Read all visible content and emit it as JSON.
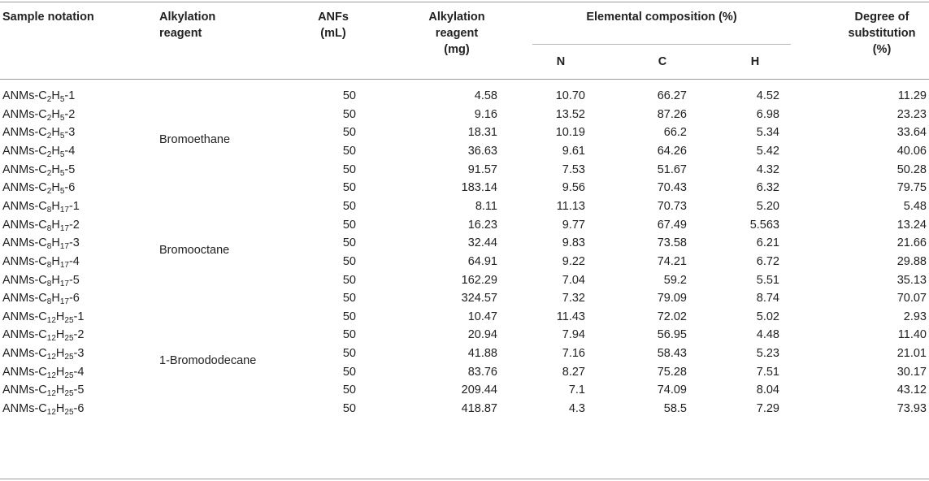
{
  "headers": {
    "sample_notation": "Sample notation",
    "alkylation_reagent_1": "Alkylation",
    "alkylation_reagent_2": "reagent",
    "anfs_1": "ANFs",
    "anfs_2": "(mL)",
    "alk_mg_1": "Alkylation",
    "alk_mg_2": "reagent",
    "alk_mg_3": "(mg)",
    "elemental": "Elemental composition (%)",
    "n": "N",
    "c": "C",
    "h": "H",
    "dos_1": "Degree of",
    "dos_2": "substitution",
    "dos_3": "(%)"
  },
  "groups": [
    {
      "reagent": "Bromoethane"
    },
    {
      "reagent": "Bromooctane"
    },
    {
      "reagent": "1-Bromododecane"
    }
  ],
  "rows": [
    {
      "prefix": "ANMs-C",
      "s1": "2",
      "mid": "H",
      "s2": "5",
      "suffix": "-1",
      "anfs": "50",
      "mg": "4.58",
      "n": "10.70",
      "c": "66.27",
      "h": "4.52",
      "dos": "11.29"
    },
    {
      "prefix": "ANMs-C",
      "s1": "2",
      "mid": "H",
      "s2": "5",
      "suffix": "-2",
      "anfs": "50",
      "mg": "9.16",
      "n": "13.52",
      "c": "87.26",
      "h": "6.98",
      "dos": "23.23"
    },
    {
      "prefix": "ANMs-C",
      "s1": "2",
      "mid": "H",
      "s2": "5",
      "suffix": "-3",
      "anfs": "50",
      "mg": "18.31",
      "n": "10.19",
      "c": "66.2",
      "h": "5.34",
      "dos": "33.64"
    },
    {
      "prefix": "ANMs-C",
      "s1": "2",
      "mid": "H",
      "s2": "5",
      "suffix": "-4",
      "anfs": "50",
      "mg": "36.63",
      "n": "9.61",
      "c": "64.26",
      "h": "5.42",
      "dos": "40.06"
    },
    {
      "prefix": "ANMs-C",
      "s1": "2",
      "mid": "H",
      "s2": "5",
      "suffix": "-5",
      "anfs": "50",
      "mg": "91.57",
      "n": "7.53",
      "c": "51.67",
      "h": "4.32",
      "dos": "50.28"
    },
    {
      "prefix": "ANMs-C",
      "s1": "2",
      "mid": "H",
      "s2": "5",
      "suffix": "-6",
      "anfs": "50",
      "mg": "183.14",
      "n": "9.56",
      "c": "70.43",
      "h": "6.32",
      "dos": "79.75"
    },
    {
      "prefix": "ANMs-C",
      "s1": "8",
      "mid": "H",
      "s2": "17",
      "suffix": "-1",
      "anfs": "50",
      "mg": "8.11",
      "n": "11.13",
      "c": "70.73",
      "h": "5.20",
      "dos": "5.48"
    },
    {
      "prefix": "ANMs-C",
      "s1": "8",
      "mid": "H",
      "s2": "17",
      "suffix": "-2",
      "anfs": "50",
      "mg": "16.23",
      "n": "9.77",
      "c": "67.49",
      "h": "5.563",
      "dos": "13.24"
    },
    {
      "prefix": "ANMs-C",
      "s1": "8",
      "mid": "H",
      "s2": "17",
      "suffix": "-3",
      "anfs": "50",
      "mg": "32.44",
      "n": "9.83",
      "c": "73.58",
      "h": "6.21",
      "dos": "21.66"
    },
    {
      "prefix": "ANMs-C",
      "s1": "8",
      "mid": "H",
      "s2": "17",
      "suffix": "-4",
      "anfs": "50",
      "mg": "64.91",
      "n": "9.22",
      "c": "74.21",
      "h": "6.72",
      "dos": "29.88"
    },
    {
      "prefix": "ANMs-C",
      "s1": "8",
      "mid": "H",
      "s2": "17",
      "suffix": "-5",
      "anfs": "50",
      "mg": "162.29",
      "n": "7.04",
      "c": "59.2",
      "h": "5.51",
      "dos": "35.13"
    },
    {
      "prefix": "ANMs-C",
      "s1": "8",
      "mid": "H",
      "s2": "17",
      "suffix": "-6",
      "anfs": "50",
      "mg": "324.57",
      "n": "7.32",
      "c": "79.09",
      "h": "8.74",
      "dos": "70.07"
    },
    {
      "prefix": "ANMs-C",
      "s1": "12",
      "mid": "H",
      "s2": "25",
      "suffix": "-1",
      "anfs": "50",
      "mg": "10.47",
      "n": "11.43",
      "c": "72.02",
      "h": "5.02",
      "dos": "2.93"
    },
    {
      "prefix": "ANMs-C",
      "s1": "12",
      "mid": "H",
      "s2": "25",
      "suffix": "-2",
      "anfs": "50",
      "mg": "20.94",
      "n": "7.94",
      "c": "56.95",
      "h": "4.48",
      "dos": "11.40"
    },
    {
      "prefix": "ANMs-C",
      "s1": "12",
      "mid": "H",
      "s2": "25",
      "suffix": "-3",
      "anfs": "50",
      "mg": "41.88",
      "n": "7.16",
      "c": "58.43",
      "h": "5.23",
      "dos": "21.01"
    },
    {
      "prefix": "ANMs-C",
      "s1": "12",
      "mid": "H",
      "s2": "25",
      "suffix": "-4",
      "anfs": "50",
      "mg": "83.76",
      "n": "8.27",
      "c": "75.28",
      "h": "7.51",
      "dos": "30.17"
    },
    {
      "prefix": "ANMs-C",
      "s1": "12",
      "mid": "H",
      "s2": "25",
      "suffix": "-5",
      "anfs": "50",
      "mg": "209.44",
      "n": "7.1",
      "c": "74.09",
      "h": "8.04",
      "dos": "43.12"
    },
    {
      "prefix": "ANMs-C",
      "s1": "12",
      "mid": "H",
      "s2": "25",
      "suffix": "-6",
      "anfs": "50",
      "mg": "418.87",
      "n": "4.3",
      "c": "58.5",
      "h": "7.29",
      "dos": "73.93"
    }
  ]
}
